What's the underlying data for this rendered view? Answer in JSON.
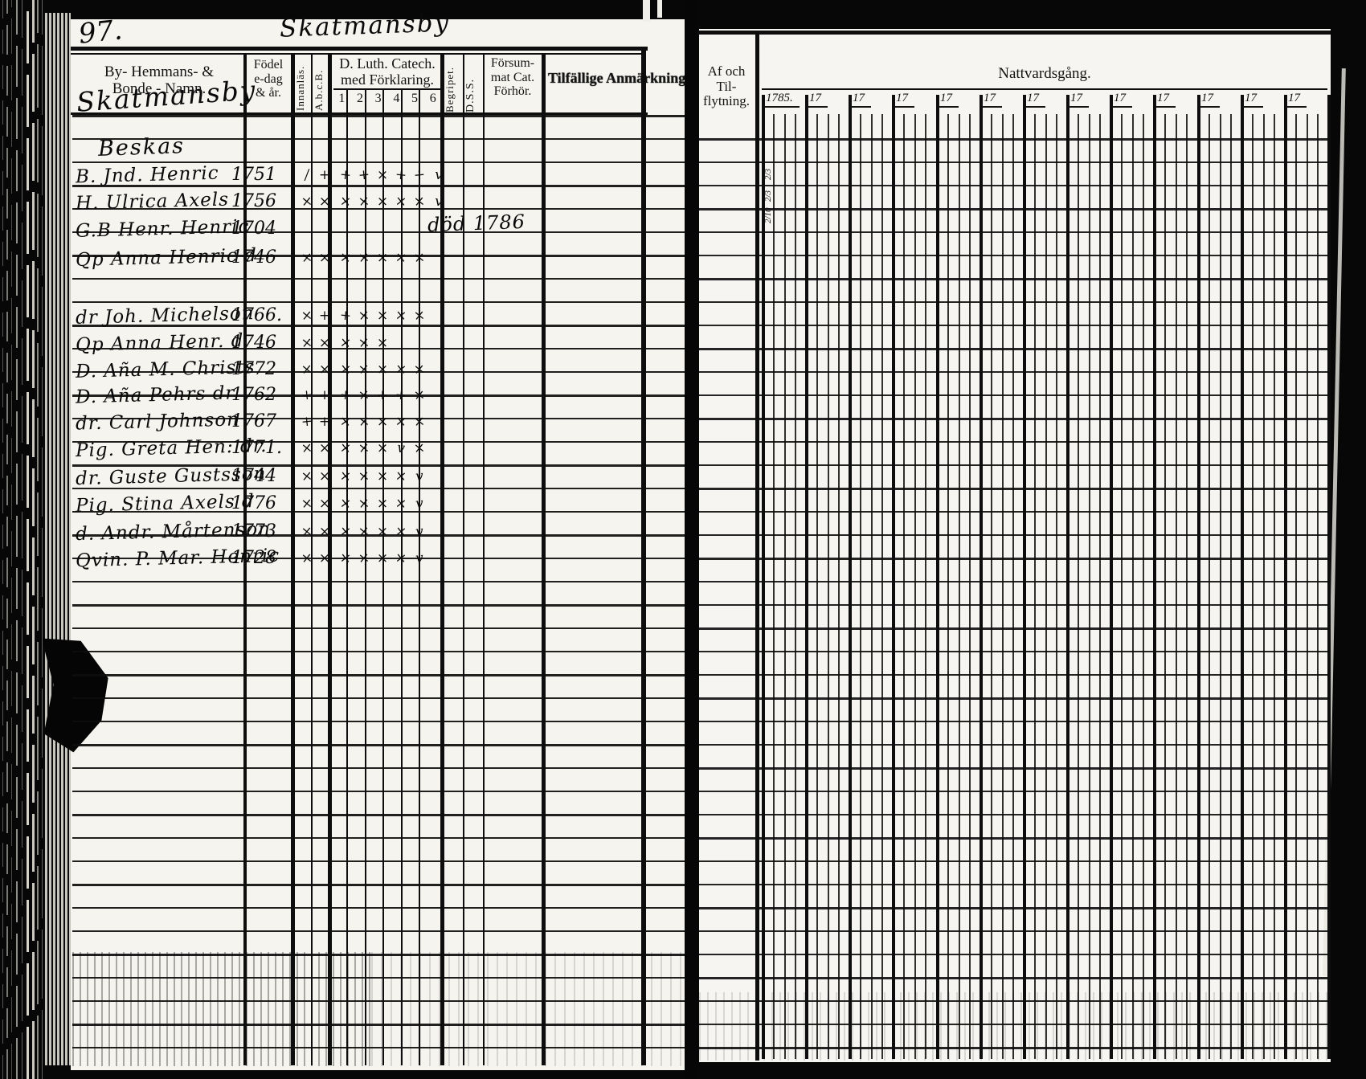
{
  "page": {
    "number": "97.",
    "title_script": "Skatmansby"
  },
  "left_table": {
    "village_script": "Skatmansby",
    "farm_script": "Beskas",
    "headers": {
      "name_lines": [
        "By- Hemmans- &",
        "Bonde - Namn."
      ],
      "birth_lines": [
        "Födel",
        "e-dag",
        "& år."
      ],
      "innanlas": "Innanläs.",
      "abc": "A.b.c.B.",
      "catech_lines": [
        "D. Luth. Catech.",
        "med Förklaring."
      ],
      "catech_numbers": [
        "1",
        "2",
        "3",
        "4",
        "5",
        "6"
      ],
      "begripet": "Begripet.",
      "dss": "D.S.S.",
      "forsummat_lines": [
        "Försum-",
        "mat Cat.",
        "Förhör."
      ],
      "anmarkning": "Tilfällige Anmärkning"
    },
    "entries": [
      {
        "name": "B. Jnd. Henric",
        "year": "1751",
        "marks": [
          "/",
          "+",
          "+",
          "+",
          "x",
          "+",
          "+",
          "v"
        ]
      },
      {
        "name": "H. Ulrica Axels",
        "year": "1756",
        "marks": [
          "x",
          "x",
          "x",
          "x",
          "x",
          "x",
          "x",
          "v"
        ]
      },
      {
        "name": "G.B Henr. Henric",
        "year": "1704",
        "marks": []
      },
      {
        "name": "Qp Anna Henric d",
        "year": "1746",
        "marks": [
          "x",
          "x",
          "x",
          "x",
          "x",
          "x",
          "x"
        ]
      },
      {
        "name": "dr Joh. Michelson",
        "year": "1766.",
        "marks": [
          "x",
          "+",
          "+",
          "x",
          "x",
          "x",
          "x"
        ]
      },
      {
        "name": "Qp Anna Henr. d",
        "year": "1746",
        "marks": [
          "x",
          "x",
          "x",
          "x",
          "x"
        ]
      },
      {
        "name": "D. Aña M. Christs",
        "year": "1772",
        "marks": [
          "x",
          "x",
          "x",
          "x",
          "x",
          "x",
          "x"
        ]
      },
      {
        "name": "D. Aña Pehrs dr",
        "year": "1762",
        "marks": [
          "+",
          "+",
          "+",
          "x",
          "+",
          "+",
          "x"
        ]
      },
      {
        "name": "dr. Carl Johnson",
        "year": "1767",
        "marks": [
          "+",
          "+",
          "x",
          "x",
          "x",
          "x",
          "x"
        ]
      },
      {
        "name": "Pig. Greta Hen: dr.",
        "year": "1771.",
        "marks": [
          "x",
          "x",
          "x",
          "x",
          "x",
          "v",
          "x"
        ]
      },
      {
        "name": "dr. Guste Gustsson",
        "year": "1744",
        "marks": [
          "x",
          "x",
          "x",
          "x",
          "x",
          "x",
          "v"
        ]
      },
      {
        "name": "Pig. Stina Axels d",
        "year": "1776",
        "marks": [
          "x",
          "x",
          "x",
          "x",
          "x",
          "x",
          "v"
        ]
      },
      {
        "name": "d. Andr. Mårtenson",
        "year": "1773",
        "marks": [
          "x",
          "x",
          "x",
          "x",
          "x",
          "x",
          "v"
        ]
      },
      {
        "name": "Qvin. P. Mar. Henric",
        "year": "1728",
        "marks": [
          "x",
          "x",
          "x",
          "x",
          "x",
          "x",
          "v"
        ]
      }
    ],
    "notes": [
      "död 1786"
    ]
  },
  "right_table": {
    "headers": {
      "moving_lines": [
        "Af och Til-",
        "flytning."
      ],
      "communion": "Nattvardsgång."
    },
    "years": [
      "1785.",
      "17",
      "17",
      "17",
      "17",
      "17",
      "17",
      "17",
      "17",
      "17",
      "17",
      "17",
      "17"
    ],
    "communion_dates": [
      "2/3",
      "2/3",
      "2/10"
    ]
  }
}
